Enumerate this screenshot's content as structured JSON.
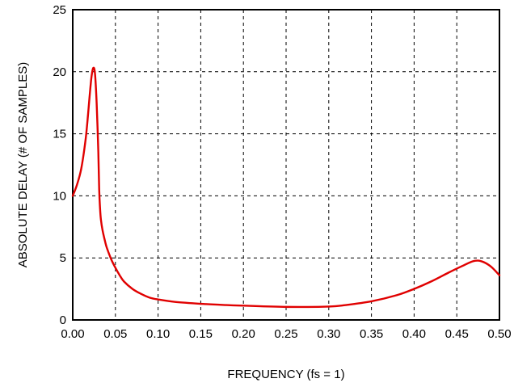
{
  "chart_data": {
    "type": "line",
    "title": "",
    "xlabel": "FREQUENCY (fs = 1)",
    "ylabel": "ABSOLUTE DELAY (# OF SAMPLES)",
    "xlim": [
      0,
      0.5
    ],
    "ylim": [
      0,
      25
    ],
    "x_ticks": [
      0.0,
      0.05,
      0.1,
      0.15,
      0.2,
      0.25,
      0.3,
      0.35,
      0.4,
      0.45,
      0.5
    ],
    "x_tick_labels": [
      "0.00",
      "0.05",
      "0.10",
      "0.15",
      "0.20",
      "0.25",
      "0.30",
      "0.35",
      "0.40",
      "0.45",
      "0.50"
    ],
    "y_ticks": [
      0,
      5,
      10,
      15,
      20,
      25
    ],
    "y_tick_labels": [
      "0",
      "5",
      "10",
      "15",
      "20",
      "25"
    ],
    "grid": true,
    "line_color": "#e00000",
    "series": [
      {
        "x": [
          0.0,
          0.005,
          0.01,
          0.015,
          0.018,
          0.02,
          0.022,
          0.024,
          0.026,
          0.028,
          0.03,
          0.031,
          0.032,
          0.033,
          0.035,
          0.038,
          0.04,
          0.045,
          0.05,
          0.055,
          0.06,
          0.07,
          0.08,
          0.09,
          0.1,
          0.12,
          0.15,
          0.18,
          0.2,
          0.25,
          0.3,
          0.32,
          0.35,
          0.38,
          0.4,
          0.42,
          0.44,
          0.455,
          0.47,
          0.48,
          0.49,
          0.5
        ],
        "y": [
          10.0,
          10.9,
          12.2,
          14.5,
          16.6,
          18.2,
          19.6,
          20.3,
          19.9,
          17.5,
          13.5,
          10.5,
          9.0,
          8.1,
          7.2,
          6.3,
          5.8,
          4.9,
          4.2,
          3.6,
          3.1,
          2.5,
          2.1,
          1.8,
          1.65,
          1.45,
          1.3,
          1.2,
          1.15,
          1.05,
          1.08,
          1.2,
          1.5,
          2.0,
          2.5,
          3.1,
          3.8,
          4.3,
          4.75,
          4.7,
          4.3,
          3.6
        ]
      }
    ]
  }
}
